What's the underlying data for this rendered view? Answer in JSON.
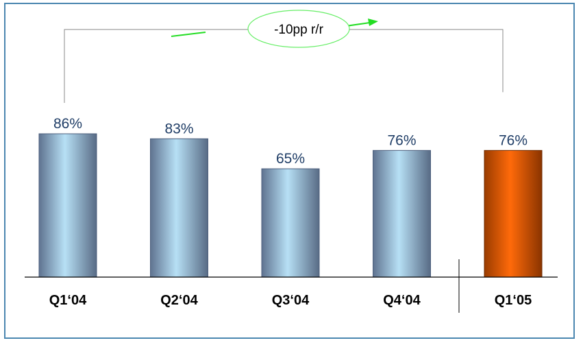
{
  "chart_data": {
    "type": "bar",
    "title": "",
    "xlabel": "",
    "ylabel": "",
    "categories": [
      "Q1‘04",
      "Q2‘04",
      "Q3‘04",
      "Q4‘04",
      "Q1‘05"
    ],
    "values": [
      86,
      83,
      65,
      76,
      76
    ],
    "value_labels": [
      "86%",
      "83%",
      "65%",
      "76%",
      "76%"
    ],
    "ylim": [
      0,
      100
    ],
    "grid": false,
    "highlight_index": 4,
    "colors": {
      "bar": "#9dc3dc",
      "bar_edge": "#4d5f7d",
      "highlight": "#ff6a0a",
      "highlight_edge": "#6e2a00",
      "value_text": "#1f3d66",
      "frame": "#4a86b0",
      "annotation_ellipse": "#66ee66",
      "annotation_arrow": "#22dd22"
    },
    "annotation": {
      "text": "-10pp r/r",
      "from_index": 0,
      "to_index": 4
    }
  }
}
